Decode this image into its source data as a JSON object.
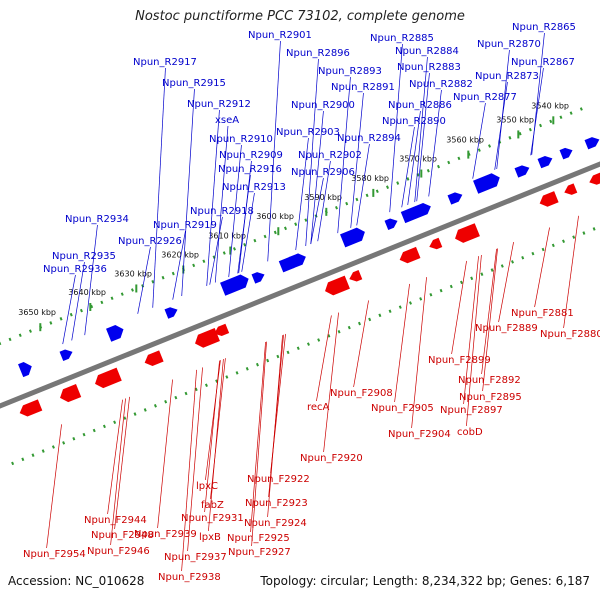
{
  "title": "Nostoc punctiforme PCC 73102, complete genome",
  "footer": {
    "accession": "Accession: NC_010628",
    "summary": "Topology: circular; Length: 8,234,322 bp; Genes: 6,187"
  },
  "colors": {
    "forward_label": "#0000cc",
    "reverse_label": "#cc0000",
    "forward_gene": "#0000ee",
    "reverse_gene": "#ee0000",
    "backbone": "#777777",
    "ruler": "#339933"
  },
  "ticks": [
    "3540 kbp",
    "3550 kbp",
    "3560 kbp",
    "3570 kbp",
    "3580 kbp",
    "3590 kbp",
    "3600 kbp",
    "3610 kbp",
    "3620 kbp",
    "3630 kbp",
    "3640 kbp",
    "3650 kbp"
  ],
  "forward_labels": [
    "Npun_R2865",
    "Npun_R2885",
    "Npun_R2870",
    "Npun_R2884",
    "Npun_R2901",
    "Npun_R2896",
    "Npun_R2867",
    "Npun_R2883",
    "Npun_R2917",
    "Npun_R2893",
    "Npun_R2873",
    "Npun_R2882",
    "Npun_R2915",
    "Npun_R2891",
    "Npun_R2877",
    "Npun_R2886",
    "Npun_R2912",
    "Npun_R2900",
    "Npun_R2890",
    "xseA",
    "Npun_R2903",
    "Npun_R2910",
    "Npun_R2894",
    "Npun_R2909",
    "Npun_R2902",
    "Npun_R2916",
    "Npun_R2906",
    "Npun_R2913",
    "Npun_R2918",
    "Npun_R2934",
    "Npun_R2919",
    "Npun_R2926",
    "Npun_R2935",
    "Npun_R2936"
  ],
  "reverse_labels": [
    "Npun_F2881",
    "Npun_F2880",
    "Npun_F2889",
    "Npun_F2899",
    "Npun_F2892",
    "Npun_F2908",
    "Npun_F2895",
    "Npun_F2905",
    "Npun_F2897",
    "recA",
    "cobD",
    "Npun_F2904",
    "Npun_F2920",
    "lpxC",
    "Npun_F2922",
    "fabZ",
    "Npun_F2923",
    "Npun_F2944",
    "Npun_F2931",
    "Npun_F2924",
    "Npun_F2948",
    "Npun_F2939",
    "lpxB",
    "Npun_F2925",
    "Npun_F2946",
    "Npun_F2927",
    "Npun_F2954",
    "Npun_F2937",
    "Npun_F2938"
  ]
}
